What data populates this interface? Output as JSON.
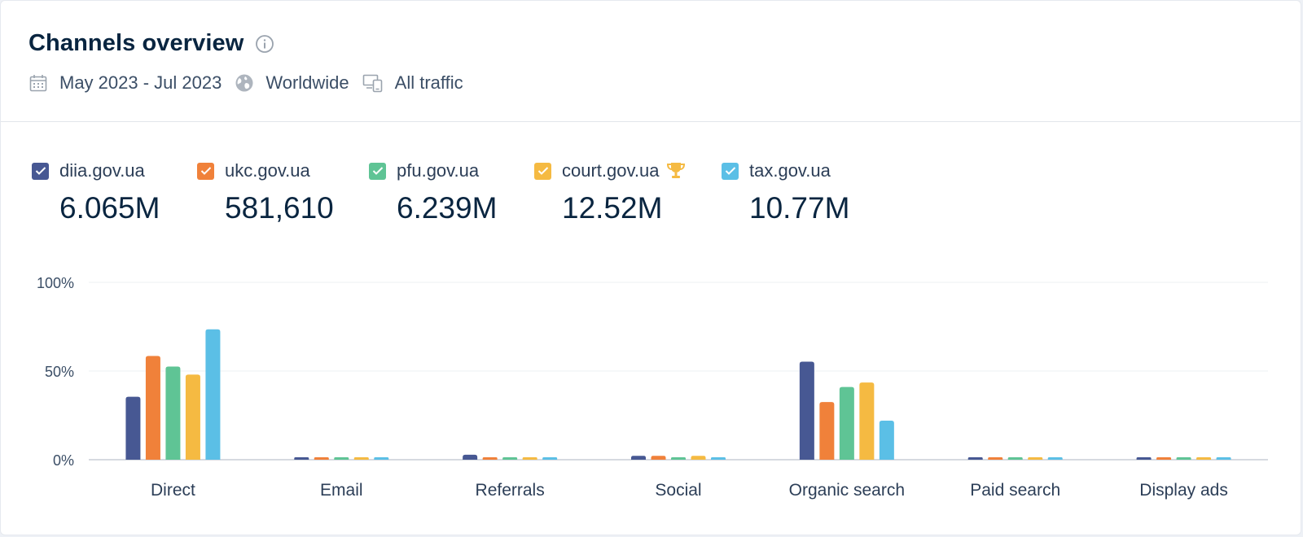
{
  "header": {
    "title": "Channels overview",
    "filters": [
      {
        "label": "May 2023 - Jul 2023",
        "icon": "calendar-icon"
      },
      {
        "label": "Worldwide",
        "icon": "globe-icon"
      },
      {
        "label": "All traffic",
        "icon": "devices-icon"
      }
    ]
  },
  "legend": [
    {
      "name": "diia.gov.ua",
      "value": "6.065M",
      "color": "#475893"
    },
    {
      "name": "ukc.gov.ua",
      "value": "581,610",
      "color": "#f0813a"
    },
    {
      "name": "pfu.gov.ua",
      "value": "6.239M",
      "color": "#5fc495"
    },
    {
      "name": "court.gov.ua",
      "value": "12.52M",
      "color": "#f5ba42",
      "badge": "trophy-icon"
    },
    {
      "name": "tax.gov.ua",
      "value": "10.77M",
      "color": "#5bbfe6"
    }
  ],
  "chart_data": {
    "type": "bar",
    "categories": [
      "Direct",
      "Email",
      "Referrals",
      "Social",
      "Organic search",
      "Paid search",
      "Display ads"
    ],
    "y_ticks": [
      "100%",
      "50%",
      "0%"
    ],
    "ylim": [
      0,
      100
    ],
    "grid": true,
    "series": [
      {
        "name": "diia.gov.ua",
        "color": "#475893",
        "values": [
          35.5,
          1.2,
          2.8,
          2.2,
          55.3,
          1.2,
          1.2
        ]
      },
      {
        "name": "ukc.gov.ua",
        "color": "#f0813a",
        "values": [
          58.5,
          1.2,
          1.2,
          2.2,
          32.5,
          1.2,
          1.2
        ]
      },
      {
        "name": "pfu.gov.ua",
        "color": "#5fc495",
        "values": [
          52.5,
          1.2,
          1.2,
          1.2,
          41.0,
          1.2,
          1.2
        ]
      },
      {
        "name": "court.gov.ua",
        "color": "#f5ba42",
        "values": [
          48.0,
          1.2,
          1.2,
          2.2,
          43.5,
          1.2,
          1.2
        ]
      },
      {
        "name": "tax.gov.ua",
        "color": "#5bbfe6",
        "values": [
          73.5,
          1.2,
          1.2,
          1.2,
          22.0,
          1.2,
          1.2
        ]
      }
    ]
  }
}
